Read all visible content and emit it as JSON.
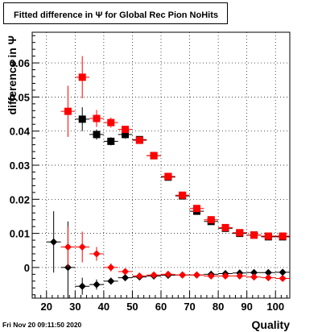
{
  "title": "Fitted difference in Ψ  for Global Rec Pion NoHits",
  "footer": "Fri Nov 20 09:11:50 2020",
  "chart_data": {
    "type": "scatter",
    "title": "Fitted difference in Ψ  for Global Rec Pion NoHits",
    "xlabel": "Quality",
    "ylabel": "difference in Ψ",
    "xlim": [
      15,
      105
    ],
    "ylim": [
      -0.009,
      0.069
    ],
    "xticks": [
      20,
      30,
      40,
      50,
      60,
      70,
      80,
      90,
      100
    ],
    "xticklabels": [
      "20",
      "30",
      "40",
      "50",
      "60",
      "70",
      "80",
      "90",
      "100"
    ],
    "yticks": [
      0,
      0.01,
      0.02,
      0.03,
      0.04,
      0.05,
      0.06
    ],
    "yticklabels": [
      "0",
      "0.01",
      "0.02",
      "0.03",
      "0.04",
      "0.05",
      "0.06"
    ],
    "grid": true,
    "colors": {
      "red": "#ff0000",
      "black": "#000000"
    },
    "series": [
      {
        "marker": "square",
        "color": "#000000",
        "x": [
          32.5,
          37.5,
          42.5,
          47.5,
          52.5,
          57.5,
          62.5,
          67.5,
          72.5,
          77.5,
          82.5,
          87.5,
          92.5,
          97.5,
          102.5
        ],
        "y": [
          0.0435,
          0.039,
          0.037,
          0.039,
          0.0375,
          0.0328,
          0.0265,
          0.021,
          0.0165,
          0.0135,
          0.0115,
          0.01,
          0.0095,
          0.009,
          0.009
        ],
        "yerr": [
          0.0035,
          0.0015,
          0.0012,
          0.0012,
          0.0008,
          0.0006,
          0.0005,
          0.0005,
          0.0004,
          0.0004,
          0.0003,
          0.0003,
          0.0003,
          0.0003,
          0.0003
        ]
      },
      {
        "marker": "square",
        "color": "#ff0000",
        "x": [
          27.5,
          32.5,
          37.5,
          42.5,
          47.5,
          52.5,
          57.5,
          62.5,
          67.5,
          72.5,
          77.5,
          82.5,
          87.5,
          92.5,
          97.5,
          102.5
        ],
        "y": [
          0.0458,
          0.0558,
          0.0437,
          0.0425,
          0.0405,
          0.0373,
          0.0328,
          0.0267,
          0.0212,
          0.0173,
          0.014,
          0.0117,
          0.0102,
          0.0095,
          0.0092,
          0.0092
        ],
        "yerr": [
          0.0075,
          0.0062,
          0.0025,
          0.0015,
          0.001,
          0.0008,
          0.0006,
          0.0005,
          0.0005,
          0.0004,
          0.0004,
          0.0003,
          0.0003,
          0.0003,
          0.0003,
          0.0003
        ]
      },
      {
        "marker": "diamond",
        "color": "#000000",
        "x": [
          22.5,
          27.5,
          32.5,
          37.5,
          42.5,
          47.5,
          52.5,
          57.5,
          62.5,
          67.5,
          72.5,
          77.5,
          82.5,
          87.5,
          92.5,
          97.5,
          102.5
        ],
        "y": [
          0.0075,
          0.0,
          -0.0055,
          -0.005,
          -0.004,
          -0.003,
          -0.0028,
          -0.0025,
          -0.0023,
          -0.0022,
          -0.0022,
          -0.002,
          -0.0018,
          -0.0016,
          -0.0015,
          -0.0015,
          -0.0014
        ],
        "yerr": [
          0.009,
          0.0135,
          0.0025,
          0.0015,
          0.001,
          0.0008,
          0.0006,
          0.0005,
          0.0004,
          0.0004,
          0.0003,
          0.0003,
          0.0003,
          0.0003,
          0.0003,
          0.0003,
          0.0003
        ]
      },
      {
        "marker": "diamond",
        "color": "#ff0000",
        "x": [
          27.5,
          32.5,
          37.5,
          42.5,
          47.5,
          52.5,
          57.5,
          62.5,
          67.5,
          72.5,
          77.5,
          82.5,
          87.5,
          92.5,
          97.5,
          102.5
        ],
        "y": [
          0.006,
          0.006,
          0.004,
          0.0,
          -0.0012,
          -0.0025,
          -0.0022,
          -0.002,
          -0.0022,
          -0.0022,
          -0.0025,
          -0.0025,
          -0.0025,
          -0.0028,
          -0.003,
          -0.0032
        ],
        "yerr": [
          0.006,
          0.0045,
          0.002,
          0.0012,
          0.0008,
          0.0006,
          0.0005,
          0.0004,
          0.0004,
          0.0003,
          0.0003,
          0.0003,
          0.0003,
          0.0003,
          0.0003,
          0.0003
        ]
      }
    ]
  }
}
